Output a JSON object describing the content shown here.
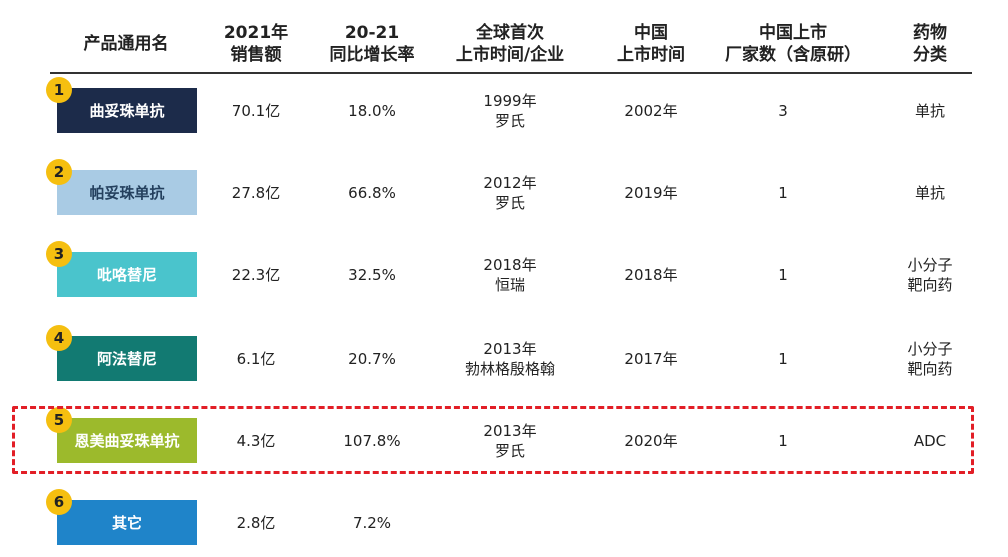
{
  "headers": [
    {
      "l1": "产品通用名",
      "l2": ""
    },
    {
      "l1": "2021年",
      "l2": "销售额"
    },
    {
      "l1": "20-21",
      "l2": "同比增长率"
    },
    {
      "l1": "全球首次",
      "l2": "上市时间/企业"
    },
    {
      "l1": "中国",
      "l2": "上市时间"
    },
    {
      "l1": "中国上市",
      "l2": "厂家数（含原研）"
    },
    {
      "l1": "药物",
      "l2": "分类"
    }
  ],
  "rows": [
    {
      "rank": "1",
      "name": "曲妥珠单抗",
      "sales": "70.1亿",
      "growth": "18.0%",
      "global1": "1999年",
      "global2": "罗氏",
      "china": "2002年",
      "makers": "3",
      "cls1": "单抗",
      "cls2": "",
      "color": "#1c2b4a"
    },
    {
      "rank": "2",
      "name": "帕妥珠单抗",
      "sales": "27.8亿",
      "growth": "66.8%",
      "global1": "2012年",
      "global2": "罗氏",
      "china": "2019年",
      "makers": "1",
      "cls1": "单抗",
      "cls2": "",
      "color": "#a9cbe4"
    },
    {
      "rank": "3",
      "name": "吡咯替尼",
      "sales": "22.3亿",
      "growth": "32.5%",
      "global1": "2018年",
      "global2": "恒瑞",
      "china": "2018年",
      "makers": "1",
      "cls1": "小分子",
      "cls2": "靶向药",
      "color": "#4ac4cc"
    },
    {
      "rank": "4",
      "name": "阿法替尼",
      "sales": "6.1亿",
      "growth": "20.7%",
      "global1": "2013年",
      "global2": "勃林格殷格翰",
      "china": "2017年",
      "makers": "1",
      "cls1": "小分子",
      "cls2": "靶向药",
      "color": "#127a72"
    },
    {
      "rank": "5",
      "name": "恩美曲妥珠单抗",
      "sales": "4.3亿",
      "growth": "107.8%",
      "global1": "2013年",
      "global2": "罗氏",
      "china": "2020年",
      "makers": "1",
      "cls1": "ADC",
      "cls2": "",
      "color": "#9cba2c"
    },
    {
      "rank": "6",
      "name": "其它",
      "sales": "2.8亿",
      "growth": "7.2%",
      "global1": "",
      "global2": "",
      "china": "",
      "makers": "",
      "cls1": "",
      "cls2": "",
      "color": "#1f84c9"
    }
  ]
}
